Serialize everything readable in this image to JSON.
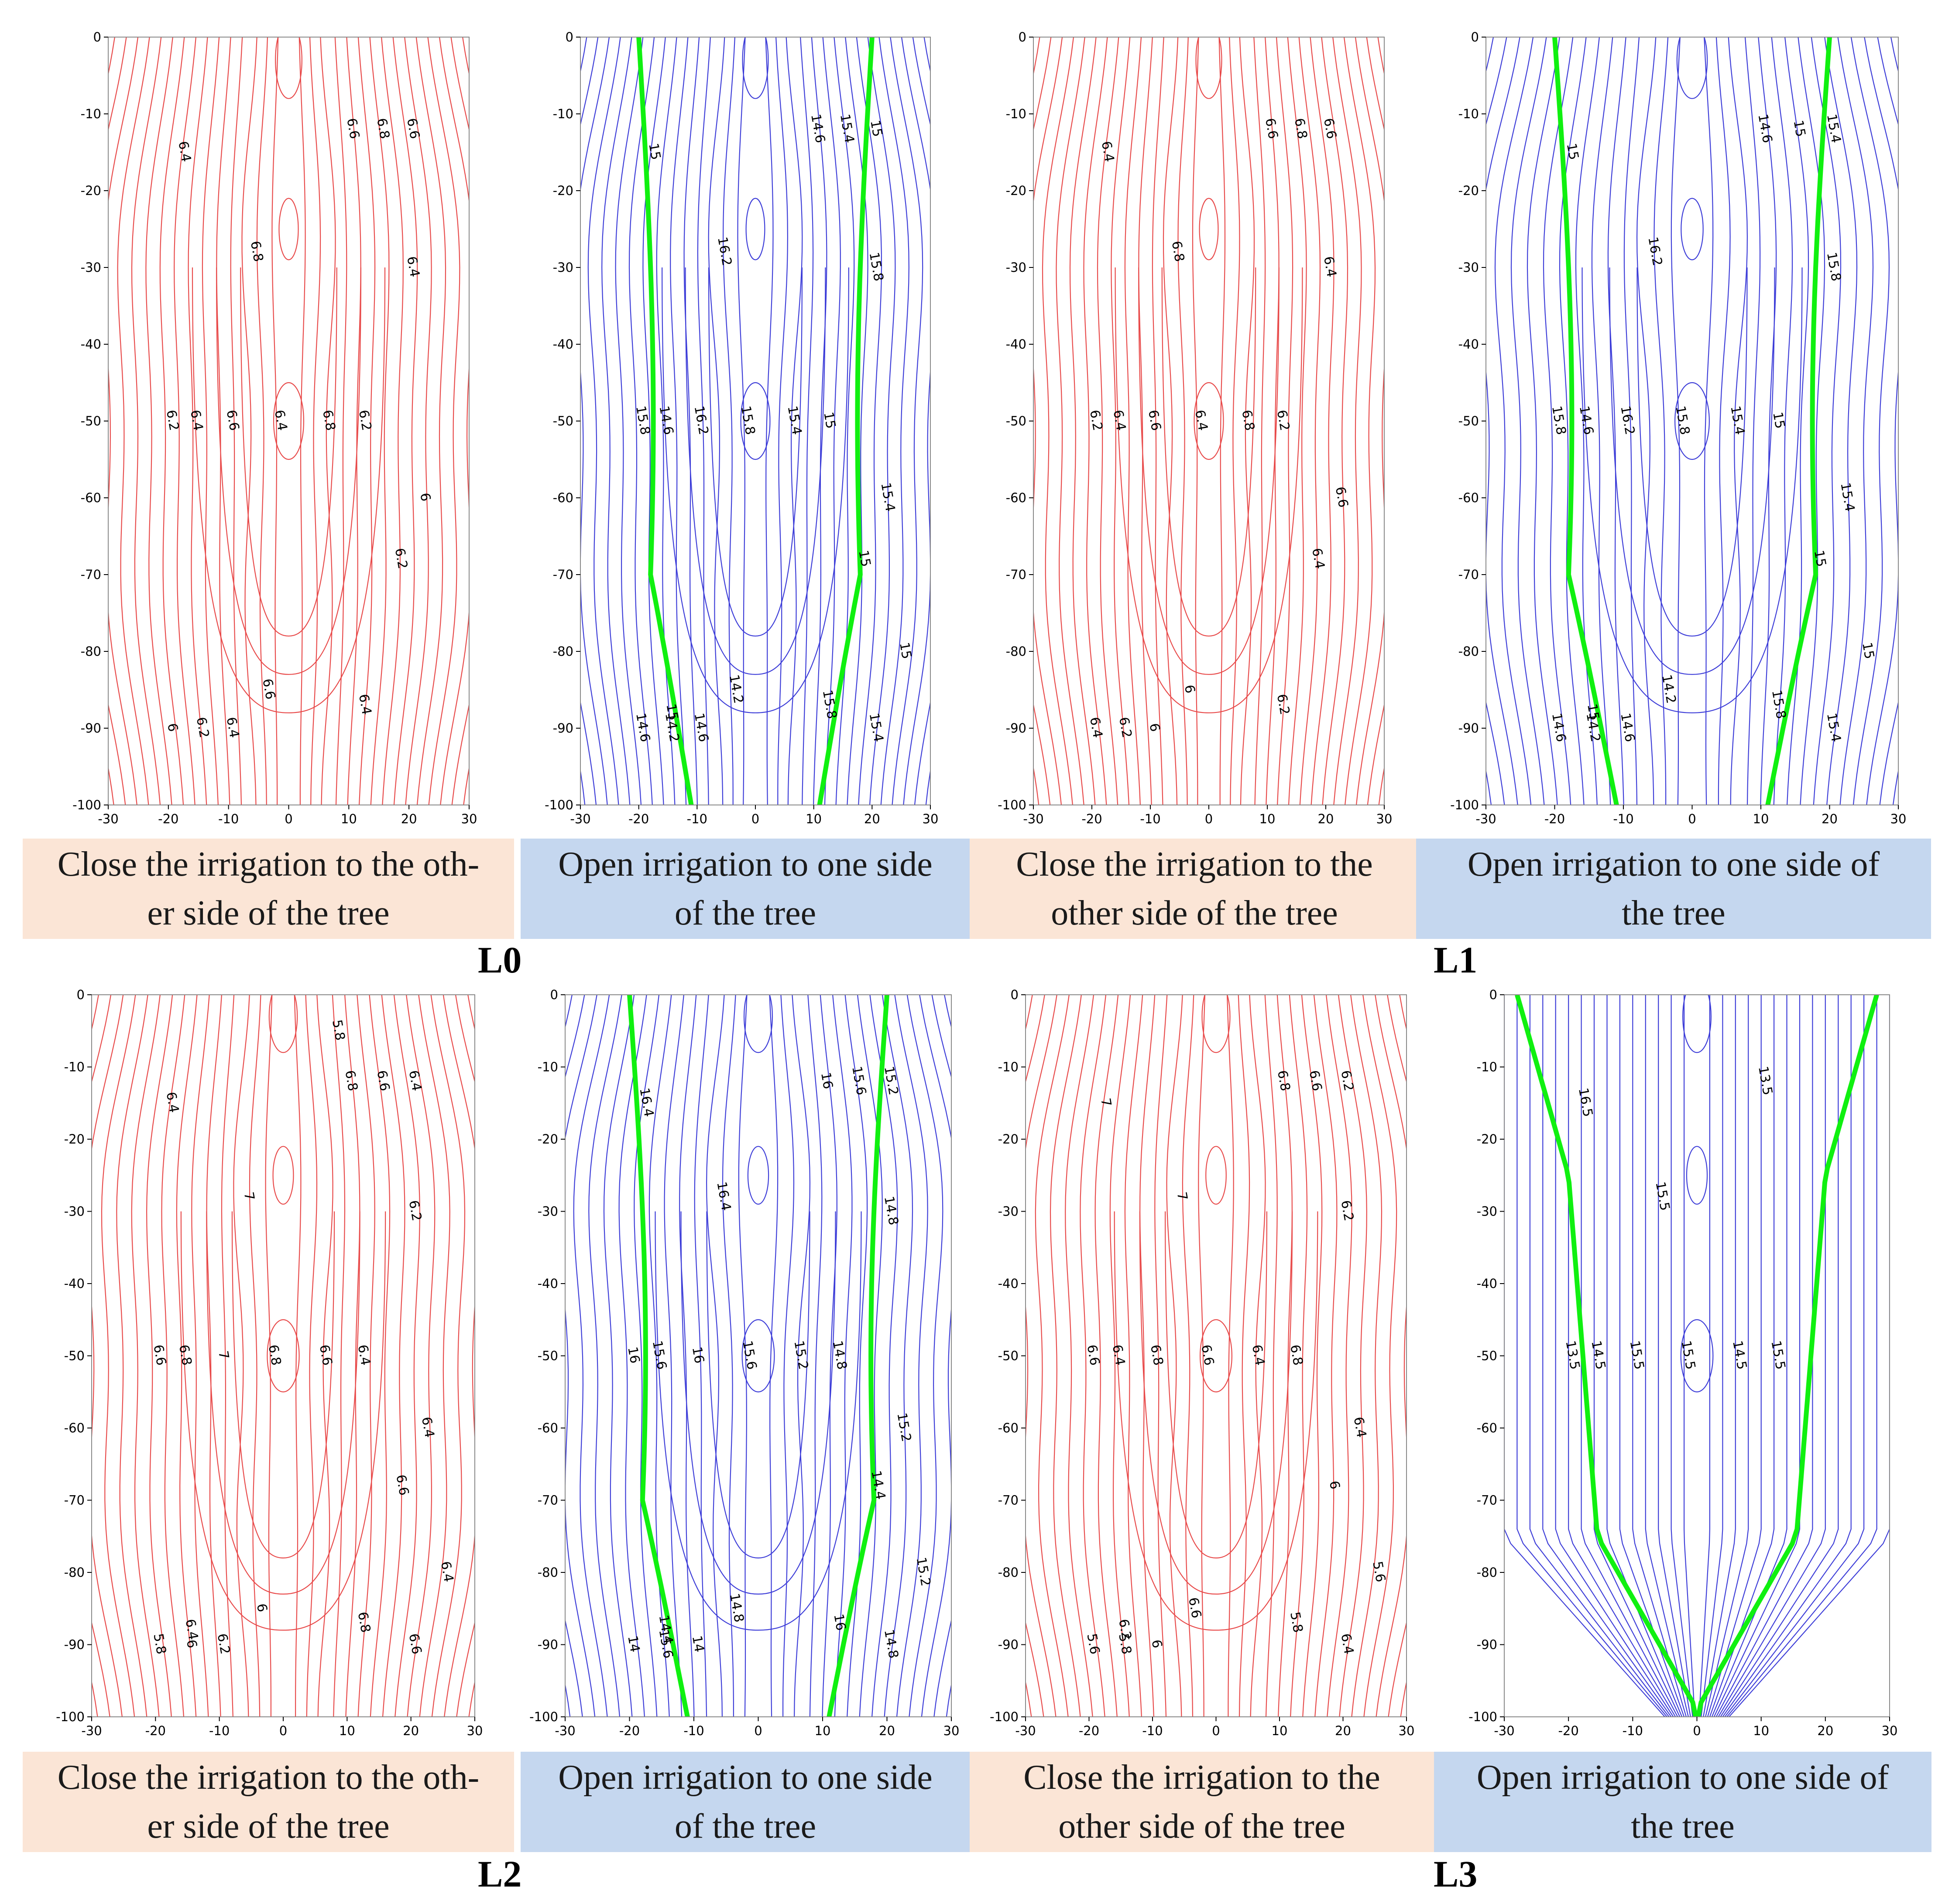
{
  "colors": {
    "close_line": "#e84a4a",
    "open_line": "#3d3dd8",
    "highlight": "#10f010",
    "close_bg": "#fbe5d6",
    "open_bg": "#c5d7ef"
  },
  "axis": {
    "xlim": [
      -30,
      30
    ],
    "ylim": [
      -100,
      0
    ],
    "xticks": [
      "-30",
      "-20",
      "-10",
      "0",
      "10",
      "20",
      "30"
    ],
    "yticks": [
      "0",
      "-10",
      "-20",
      "-30",
      "-40",
      "-50",
      "-60",
      "-70",
      "-80",
      "-90",
      "-100"
    ]
  },
  "groups": [
    {
      "label": "L0"
    },
    {
      "label": "L1"
    },
    {
      "label": "L2"
    },
    {
      "label": "L3"
    }
  ],
  "captions": {
    "close_a": [
      "Close the irrigation to the oth-",
      "er side of the tree"
    ],
    "close_b": [
      "Close the irrigation to the",
      "other side of the tree"
    ],
    "open_a": [
      "Open irrigation to one side",
      "of the tree"
    ],
    "open_b": [
      "Open irrigation to one side of",
      "the tree"
    ]
  },
  "chart_data": [
    {
      "type": "contour",
      "group": "L0",
      "condition": "close",
      "contour_labels": [
        "6.4",
        "6.8",
        "6.6",
        "6.4",
        "6.8",
        "6.2",
        "6.2",
        "6.4",
        "6.6",
        "6.8",
        "6.6",
        "6.4",
        "6",
        "6.2",
        "6.6",
        "6.4",
        "6",
        "6.2",
        "6.4"
      ]
    },
    {
      "type": "contour",
      "group": "L0",
      "condition": "open",
      "highlight_level": "15",
      "contour_labels": [
        "15",
        "16.2",
        "16.2",
        "15.8",
        "15.4",
        "15",
        "15.8",
        "14.6",
        "14.6",
        "15.4",
        "15",
        "15.8",
        "15.4",
        "15",
        "14.2",
        "15.8",
        "14.6",
        "14.2",
        "14.6",
        "15",
        "15.4",
        "15"
      ]
    },
    {
      "type": "contour",
      "group": "L1",
      "condition": "close",
      "contour_labels": [
        "6.4",
        "6.8",
        "6.6",
        "6.4",
        "6.8",
        "6.2",
        "6.2",
        "6.4",
        "6.6",
        "6.8",
        "6.6",
        "6.4",
        "6.6",
        "6.4",
        "6",
        "6.2",
        "6.4",
        "6.2",
        "6"
      ]
    },
    {
      "type": "contour",
      "group": "L1",
      "condition": "open",
      "highlight_level": "15",
      "contour_labels": [
        "15",
        "16.2",
        "16.2",
        "15.8",
        "15.4",
        "15",
        "15.8",
        "14.6",
        "14.6",
        "15",
        "15.4",
        "15.8",
        "15.4",
        "15",
        "14.2",
        "15.8",
        "14.6",
        "14.2",
        "14.6",
        "15",
        "15.4",
        "15"
      ]
    },
    {
      "type": "contour",
      "group": "L2",
      "condition": "close",
      "contour_labels": [
        "6.4",
        "7",
        "7",
        "6.8",
        "6.6",
        "6.4",
        "6.6",
        "6.8",
        "6.8",
        "6.6",
        "6.4",
        "6.2",
        "6.4",
        "6.6",
        "6",
        "6.8",
        "5.8",
        "6",
        "6.2",
        "6.4",
        "6.6",
        "6.4",
        "5.8"
      ]
    },
    {
      "type": "contour",
      "group": "L2",
      "condition": "open",
      "highlight_level": "14.8",
      "contour_labels": [
        "16.4",
        "16.4",
        "16",
        "15.6",
        "15.2",
        "14.8",
        "16",
        "15.6",
        "16",
        "15.6",
        "15.2",
        "14.8",
        "15.2",
        "14.4",
        "14.8",
        "16",
        "14",
        "15.6",
        "14",
        "14.4",
        "14.8",
        "15.2"
      ]
    },
    {
      "type": "contour",
      "group": "L3",
      "condition": "close",
      "contour_labels": [
        "7",
        "7",
        "6.8",
        "6.6",
        "6.4",
        "6.8",
        "6.6",
        "6.4",
        "6.8",
        "6.6",
        "6.2",
        "6.2",
        "6.4",
        "6",
        "6.6",
        "5.8",
        "5.6",
        "5.8",
        "6",
        "6.2",
        "6.4",
        "5.6"
      ]
    },
    {
      "type": "contour",
      "group": "L3",
      "condition": "open",
      "highlight_level": "15",
      "contour_labels": [
        "16.5",
        "15.5",
        "15.5",
        "15.5",
        "14.5",
        "15.5",
        "13.5",
        "14.5",
        "13.5"
      ]
    }
  ]
}
